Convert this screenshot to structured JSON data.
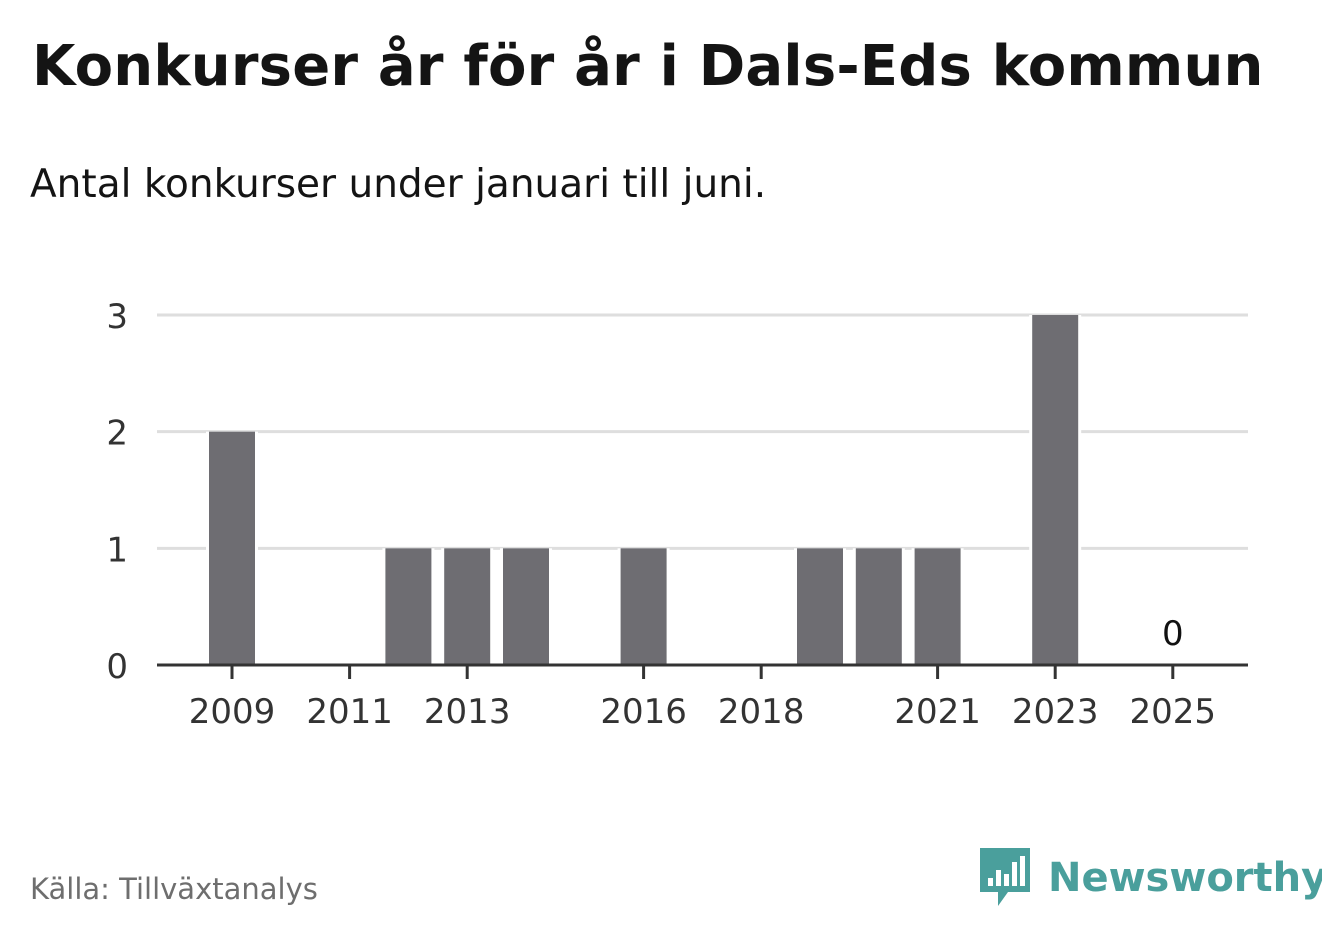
{
  "title": "Konkurser år för år i Dals-Eds kommun",
  "subtitle": "Antal konkurser under januari till juni.",
  "source": "Källa: Tillväxtanalys",
  "brand": {
    "name": "Newsworthy",
    "logo_icon": "bar-chart-speech-bubble-icon",
    "color": "#4a9f9c"
  },
  "chart_data": {
    "type": "bar",
    "categories": [
      "2009",
      "2010",
      "2011",
      "2012",
      "2013",
      "2014",
      "2015",
      "2016",
      "2017",
      "2018",
      "2019",
      "2020",
      "2021",
      "2022",
      "2023",
      "2024",
      "2025"
    ],
    "x_tick_labels": [
      "2009",
      "2011",
      "2013",
      "2016",
      "2018",
      "2021",
      "2023",
      "2025"
    ],
    "values": [
      2,
      0,
      0,
      1,
      1,
      1,
      0,
      1,
      0,
      0,
      1,
      1,
      1,
      0,
      3,
      0,
      0
    ],
    "annotations": [
      {
        "category": "2025",
        "text": "0"
      }
    ],
    "yticks": [
      0,
      1,
      2,
      3
    ],
    "ylim": [
      0,
      3
    ],
    "grid": true,
    "bar_color": "#6e6d72",
    "grid_color": "#dedede",
    "axis_color": "#333333"
  }
}
